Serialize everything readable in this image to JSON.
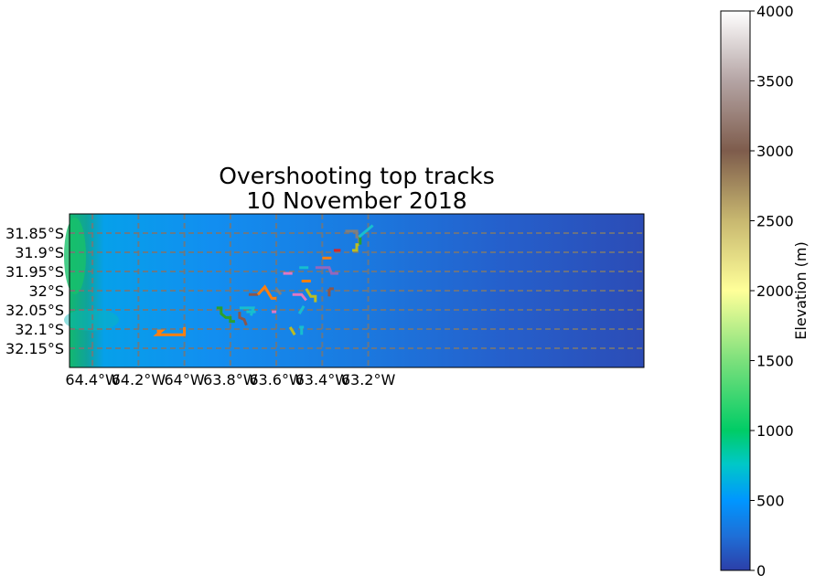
{
  "title_line1": "Overshooting top tracks",
  "title_line2": "10 November 2018",
  "map": {
    "lon_range": [
      -64.5,
      -62.0
    ],
    "lat_range": [
      -32.2,
      -31.8
    ],
    "gridlines": true,
    "lon_ticks": [
      -64.4,
      -64.2,
      -64.0,
      -63.8,
      -63.6,
      -63.4,
      -63.2
    ],
    "lon_labels": [
      "64.4°W",
      "64.2°W",
      "64°W",
      "63.8°W",
      "63.6°W",
      "63.4°W",
      "63.2°W"
    ],
    "lat_ticks": [
      -31.85,
      -31.9,
      -31.95,
      -32.0,
      -32.05,
      -32.1,
      -32.15
    ],
    "lat_labels": [
      "31.85°S",
      "31.9°S",
      "31.95°S",
      "32°S",
      "32.05°S",
      "32.1°S",
      "32.15°S"
    ]
  },
  "colorbar": {
    "label": "Elevation (m)",
    "range": [
      0,
      4000
    ],
    "ticks": [
      0,
      500,
      1000,
      1500,
      2000,
      2500,
      3000,
      3500,
      4000
    ],
    "tick_labels": [
      "0",
      "500",
      "1000",
      "1500",
      "2000",
      "2500",
      "3000",
      "3500",
      "4000"
    ],
    "colors": [
      "#2c3fa8",
      "#1f78d8",
      "#0096ff",
      "#00c873",
      "#7ce07c",
      "#ffff99",
      "#c8b870",
      "#8a6a52",
      "#7a5a4a",
      "#b8a8a8",
      "#ffffff"
    ]
  },
  "tracks": [
    {
      "color": "#ff7f0e",
      "points": [
        [
          -64.12,
          -32.105
        ],
        [
          -64.1,
          -32.105
        ],
        [
          -64.12,
          -32.115
        ],
        [
          -64.0,
          -32.115
        ],
        [
          -64.0,
          -32.095
        ]
      ]
    },
    {
      "color": "#2ca02c",
      "points": [
        [
          -63.86,
          -32.045
        ],
        [
          -63.84,
          -32.045
        ],
        [
          -63.84,
          -32.06
        ],
        [
          -63.82,
          -32.07
        ],
        [
          -63.8,
          -32.07
        ],
        [
          -63.8,
          -32.08
        ],
        [
          -63.78,
          -32.08
        ]
      ]
    },
    {
      "color": "#8c564b",
      "points": [
        [
          -63.76,
          -32.055
        ],
        [
          -63.76,
          -32.07
        ],
        [
          -63.74,
          -32.075
        ],
        [
          -63.73,
          -32.09
        ]
      ]
    },
    {
      "color": "#17becf",
      "points": [
        [
          -63.76,
          -32.045
        ],
        [
          -63.7,
          -32.045
        ],
        [
          -63.71,
          -32.065
        ]
      ]
    },
    {
      "color": "#17becf",
      "points": [
        [
          -63.73,
          -32.055
        ],
        [
          -63.69,
          -32.055
        ]
      ]
    },
    {
      "color": "#8c564b",
      "points": [
        [
          -63.72,
          -32.01
        ],
        [
          -63.68,
          -32.01
        ]
      ]
    },
    {
      "color": "#ff7f0e",
      "points": [
        [
          -63.68,
          -32.01
        ],
        [
          -63.65,
          -31.99
        ],
        [
          -63.62,
          -32.02
        ],
        [
          -63.6,
          -32.02
        ]
      ]
    },
    {
      "color": "#7f7f7f",
      "points": [
        [
          -63.6,
          -31.995
        ],
        [
          -63.58,
          -32.01
        ]
      ]
    },
    {
      "color": "#e377c2",
      "points": [
        [
          -63.62,
          -32.055
        ],
        [
          -63.6,
          -32.055
        ]
      ]
    },
    {
      "color": "#e377c2",
      "points": [
        [
          -63.57,
          -31.955
        ],
        [
          -63.53,
          -31.955
        ]
      ]
    },
    {
      "color": "#17becf",
      "points": [
        [
          -63.5,
          -31.94
        ],
        [
          -63.46,
          -31.94
        ]
      ]
    },
    {
      "color": "#ff7f0e",
      "points": [
        [
          -63.49,
          -31.975
        ],
        [
          -63.45,
          -31.975
        ]
      ]
    },
    {
      "color": "#e377c2",
      "points": [
        [
          -63.53,
          -32.01
        ],
        [
          -63.49,
          -32.01
        ],
        [
          -63.47,
          -32.025
        ]
      ]
    },
    {
      "color": "#bcbd22",
      "points": [
        [
          -63.47,
          -31.995
        ],
        [
          -63.45,
          -32.015
        ],
        [
          -63.43,
          -32.015
        ],
        [
          -63.43,
          -32.03
        ]
      ]
    },
    {
      "color": "#17becf",
      "points": [
        [
          -63.5,
          -32.06
        ],
        [
          -63.48,
          -32.04
        ]
      ]
    },
    {
      "color": "#bcbd22",
      "points": [
        [
          -63.54,
          -32.095
        ],
        [
          -63.52,
          -32.115
        ]
      ]
    },
    {
      "color": "#17becf",
      "points": [
        [
          -63.5,
          -32.095
        ],
        [
          -63.48,
          -32.095
        ]
      ]
    },
    {
      "color": "#17becf",
      "points": [
        [
          -63.49,
          -32.095
        ],
        [
          -63.49,
          -32.115
        ]
      ]
    },
    {
      "color": "#9467bd",
      "points": [
        [
          -63.43,
          -31.94
        ],
        [
          -63.37,
          -31.94
        ],
        [
          -63.36,
          -31.955
        ],
        [
          -63.33,
          -31.955
        ]
      ]
    },
    {
      "color": "#ff7f0e",
      "points": [
        [
          -63.4,
          -31.915
        ],
        [
          -63.36,
          -31.915
        ]
      ]
    },
    {
      "color": "#d62728",
      "points": [
        [
          -63.35,
          -31.895
        ],
        [
          -63.32,
          -31.895
        ]
      ]
    },
    {
      "color": "#8c564b",
      "points": [
        [
          -63.37,
          -31.995
        ],
        [
          -63.37,
          -32.015
        ]
      ]
    },
    {
      "color": "#8c564b",
      "points": [
        [
          -63.37,
          -31.995
        ],
        [
          -63.35,
          -31.995
        ]
      ]
    },
    {
      "color": "#7f7f7f",
      "points": [
        [
          -63.3,
          -31.845
        ],
        [
          -63.25,
          -31.845
        ],
        [
          -63.25,
          -31.86
        ],
        [
          -63.24,
          -31.86
        ],
        [
          -63.24,
          -31.875
        ]
      ]
    },
    {
      "color": "#bcbd22",
      "points": [
        [
          -63.27,
          -31.895
        ],
        [
          -63.25,
          -31.895
        ],
        [
          -63.25,
          -31.88
        ],
        [
          -63.24,
          -31.88
        ]
      ]
    },
    {
      "color": "#2ca02c",
      "points": [
        [
          -63.235,
          -31.86
        ],
        [
          -63.235,
          -31.88
        ]
      ]
    },
    {
      "color": "#17becf",
      "points": [
        [
          -63.24,
          -31.86
        ],
        [
          -63.18,
          -31.83
        ]
      ]
    }
  ]
}
